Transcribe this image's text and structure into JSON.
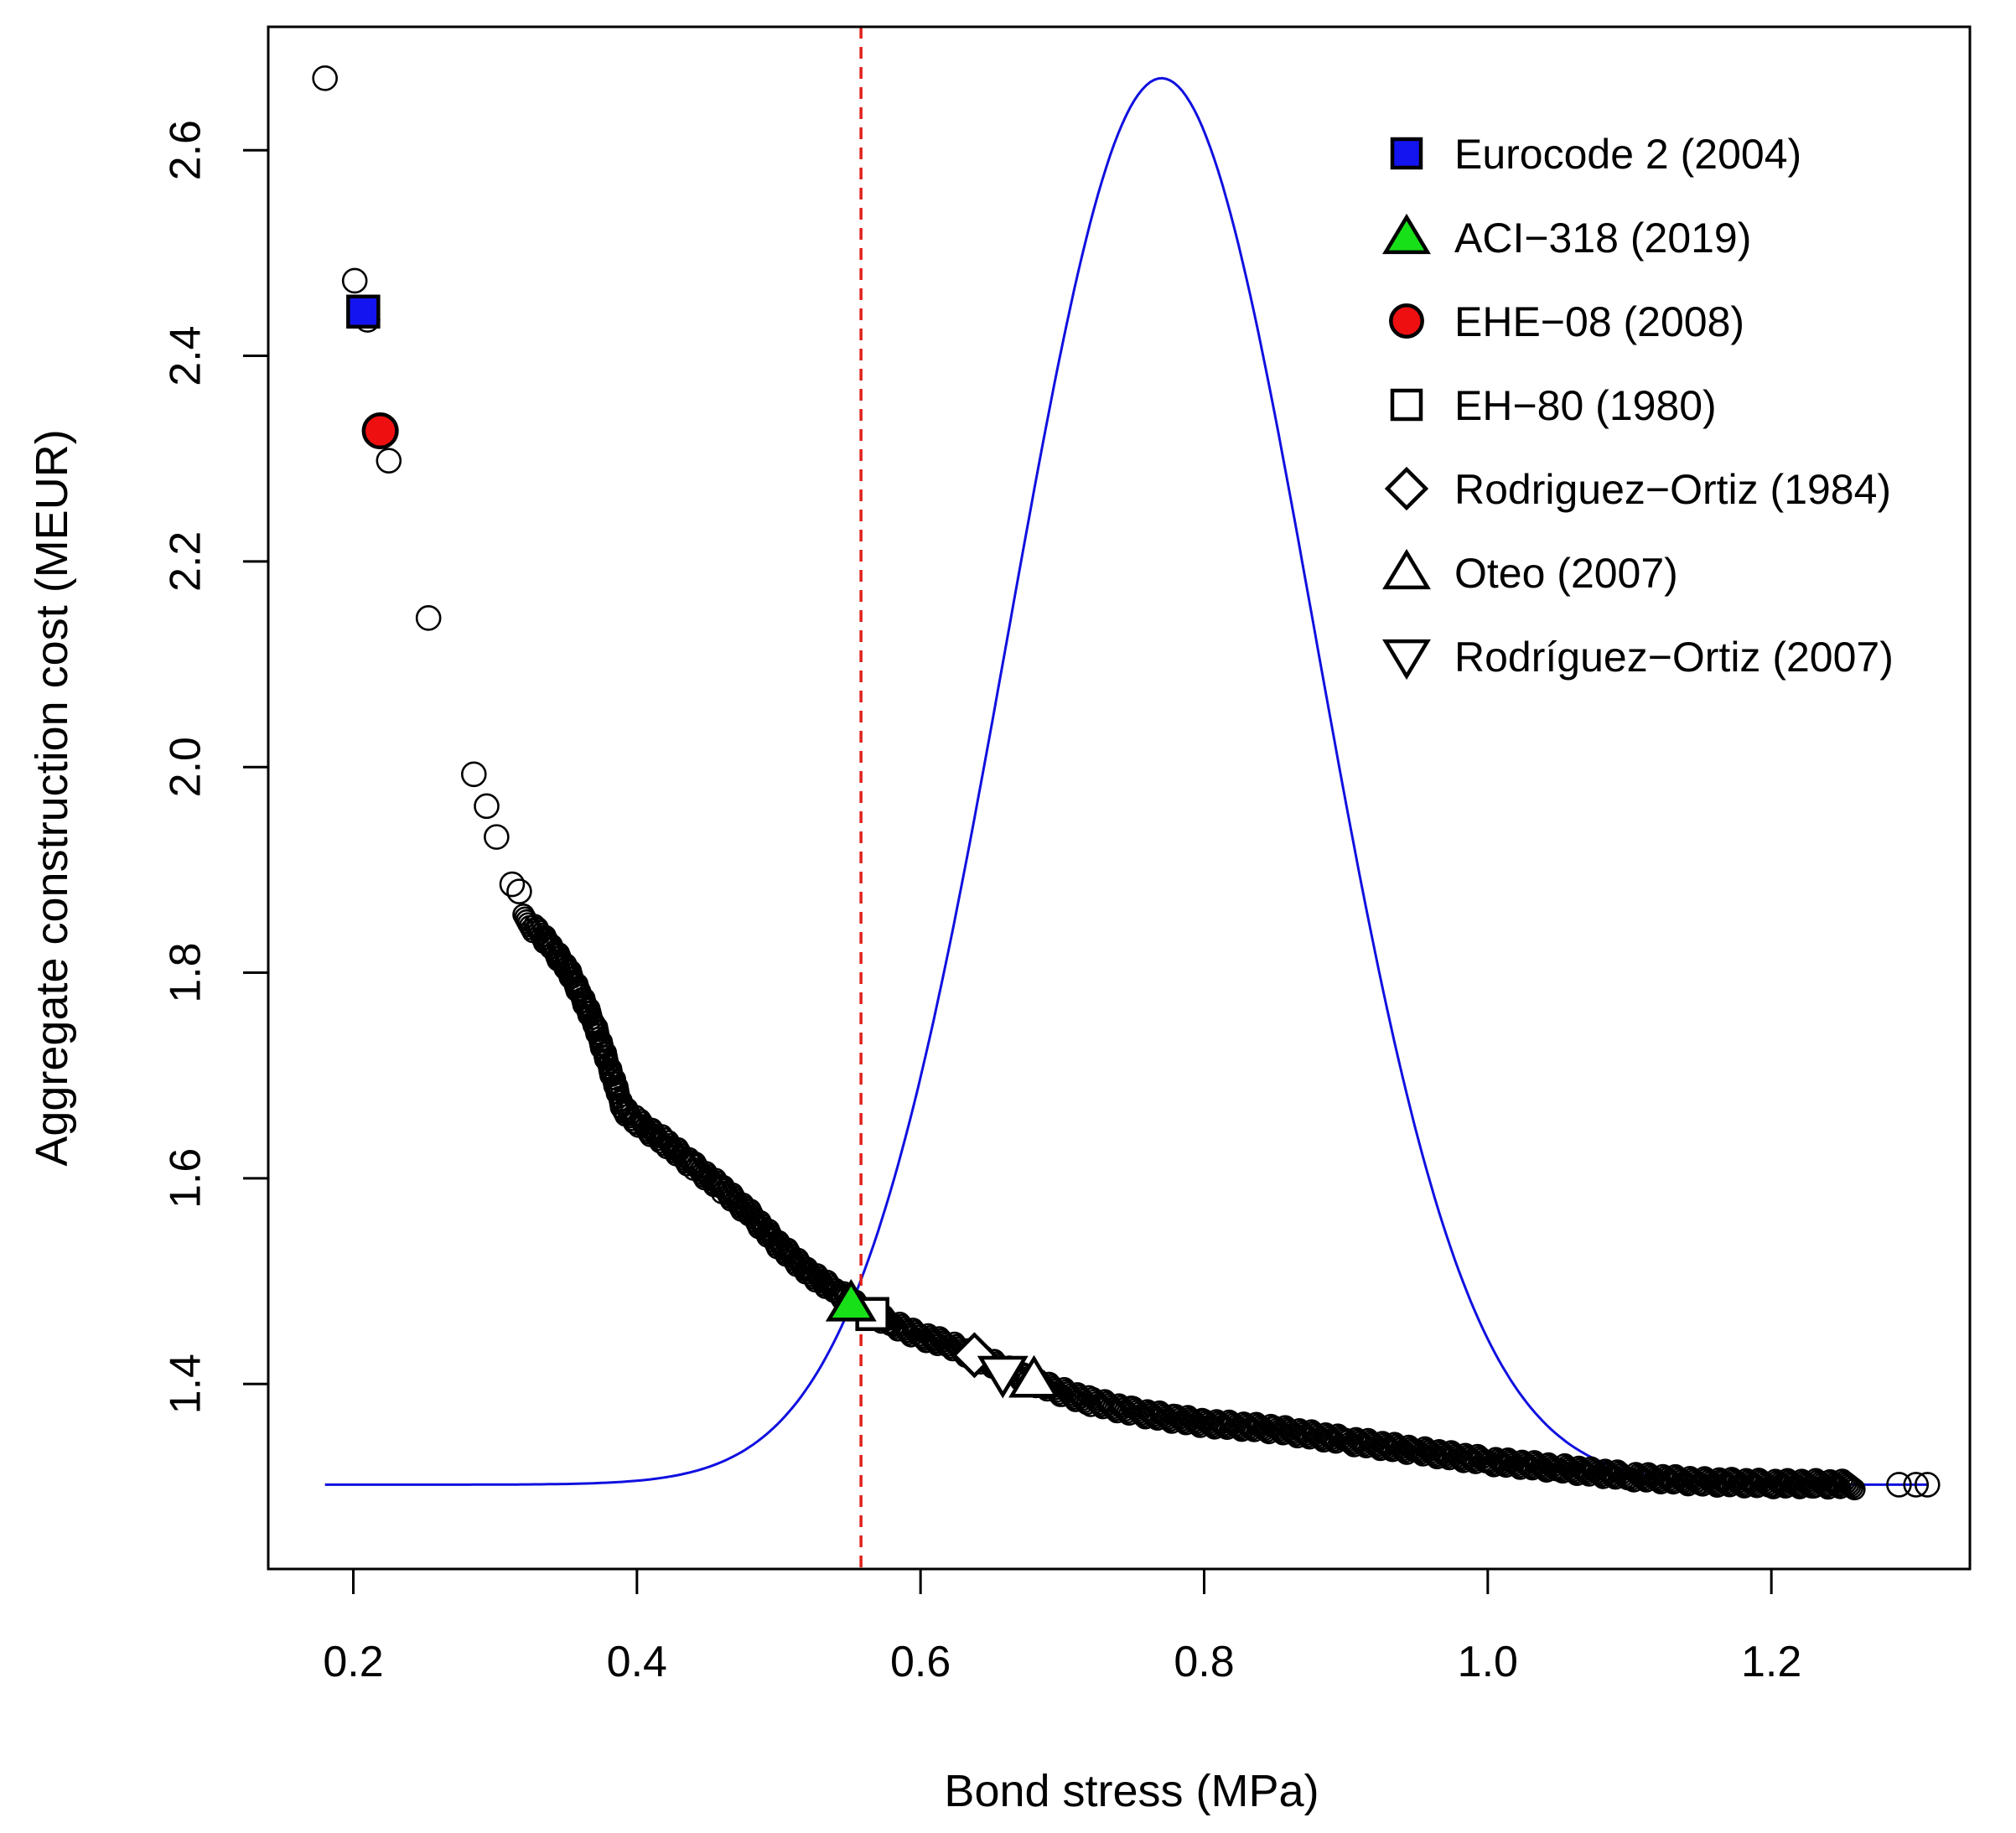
{
  "chart_data": {
    "type": "scatter",
    "title": "",
    "xlabel": "Bond stress (MPa)",
    "ylabel": "Aggregate construction cost (MEUR)",
    "xlim": [
      0.14,
      1.34
    ],
    "ylim": [
      1.22,
      2.72
    ],
    "x_ticks": [
      0.2,
      0.4,
      0.6,
      0.8,
      1.0,
      1.2
    ],
    "x_tick_labels": [
      "0.2",
      "0.4",
      "0.6",
      "0.8",
      "1.0",
      "1.2"
    ],
    "y_ticks": [
      1.4,
      1.6,
      1.8,
      2.0,
      2.2,
      2.4,
      2.6
    ],
    "y_tick_labels": [
      "1.4",
      "1.6",
      "1.8",
      "2.0",
      "2.2",
      "2.4",
      "2.6"
    ],
    "grid": false,
    "legend_position": "top-right",
    "reference_line": {
      "orientation": "vertical",
      "x": 0.558,
      "color": "#e0201a",
      "style": "dashed"
    },
    "density_curve": {
      "color": "#1010e0",
      "baseline": 1.302,
      "peak_x": 0.77,
      "peak_y": 2.67,
      "x_range": [
        0.18,
        1.31
      ],
      "sigma": 0.108
    },
    "outlier_points": [
      [
        0.18,
        2.67
      ],
      [
        0.201,
        2.473
      ],
      [
        0.21,
        2.435
      ],
      [
        0.225,
        2.298
      ],
      [
        0.253,
        2.145
      ],
      [
        0.285,
        1.993
      ],
      [
        0.294,
        1.962
      ],
      [
        0.301,
        1.932
      ],
      [
        0.312,
        1.886
      ],
      [
        0.317,
        1.879
      ],
      [
        1.29,
        1.302
      ],
      [
        1.302,
        1.302
      ],
      [
        1.31,
        1.302
      ]
    ],
    "dense_curve": {
      "description": "Dense cloud of simulated designs (black open circles)",
      "points": [
        [
          0.32,
          1.852
        ],
        [
          0.33,
          1.84
        ],
        [
          0.34,
          1.824
        ],
        [
          0.35,
          1.806
        ],
        [
          0.36,
          1.78
        ],
        [
          0.37,
          1.75
        ],
        [
          0.38,
          1.71
        ],
        [
          0.385,
          1.69
        ],
        [
          0.39,
          1.668
        ],
        [
          0.4,
          1.655
        ],
        [
          0.42,
          1.635
        ],
        [
          0.44,
          1.612
        ],
        [
          0.46,
          1.59
        ],
        [
          0.48,
          1.565
        ],
        [
          0.5,
          1.535
        ],
        [
          0.52,
          1.51
        ],
        [
          0.54,
          1.49
        ],
        [
          0.56,
          1.472
        ],
        [
          0.58,
          1.458
        ],
        [
          0.6,
          1.447
        ],
        [
          0.62,
          1.438
        ],
        [
          0.64,
          1.426
        ],
        [
          0.66,
          1.414
        ],
        [
          0.68,
          1.402
        ],
        [
          0.7,
          1.392
        ],
        [
          0.72,
          1.383
        ],
        [
          0.75,
          1.373
        ],
        [
          0.78,
          1.366
        ],
        [
          0.8,
          1.362
        ],
        [
          0.85,
          1.356
        ],
        [
          0.9,
          1.345
        ],
        [
          0.95,
          1.335
        ],
        [
          1.0,
          1.325
        ],
        [
          1.05,
          1.318
        ],
        [
          1.1,
          1.31
        ],
        [
          1.15,
          1.305
        ],
        [
          1.2,
          1.303
        ],
        [
          1.23,
          1.303
        ],
        [
          1.26,
          1.302
        ]
      ]
    },
    "series": [
      {
        "name": "Eurocode 2 (2004)",
        "marker": "square",
        "fill": "#1414f0",
        "x": 0.207,
        "y": 2.443
      },
      {
        "name": "ACI−318 (2019)",
        "marker": "triangle-up",
        "fill": "#18e018",
        "x": 0.551,
        "y": 1.478
      },
      {
        "name": "EHE−08 (2008)",
        "marker": "circle",
        "fill": "#ee1010",
        "x": 0.219,
        "y": 2.327
      },
      {
        "name": "EH−80 (1980)",
        "marker": "square",
        "fill": "#ffffff",
        "x": 0.566,
        "y": 1.468
      },
      {
        "name": "Rodriguez−Ortiz (1984)",
        "marker": "diamond",
        "fill": "#ffffff",
        "x": 0.638,
        "y": 1.428
      },
      {
        "name": "Oteo (2007)",
        "marker": "triangle-up",
        "fill": "#ffffff",
        "x": 0.68,
        "y": 1.404
      },
      {
        "name": "Rodríguez−Ortiz (2007)",
        "marker": "triangle-down",
        "fill": "#ffffff",
        "x": 0.658,
        "y": 1.41
      }
    ]
  }
}
